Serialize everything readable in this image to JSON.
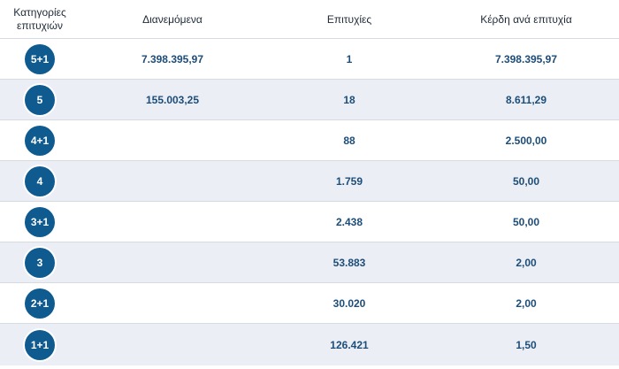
{
  "header": {
    "category": "Κατηγορίες επιτυχιών",
    "distributed": "Διανεμόμενα",
    "winners": "Επιτυχίες",
    "prize": "Κέρδη ανά επιτυχία"
  },
  "rows": [
    {
      "category": "5+1",
      "distributed": "7.398.395,97",
      "winners": "1",
      "prize": "7.398.395,97"
    },
    {
      "category": "5",
      "distributed": "155.003,25",
      "winners": "18",
      "prize": "8.611,29"
    },
    {
      "category": "4+1",
      "distributed": "",
      "winners": "88",
      "prize": "2.500,00"
    },
    {
      "category": "4",
      "distributed": "",
      "winners": "1.759",
      "prize": "50,00"
    },
    {
      "category": "3+1",
      "distributed": "",
      "winners": "2.438",
      "prize": "50,00"
    },
    {
      "category": "3",
      "distributed": "",
      "winners": "53.883",
      "prize": "2,00"
    },
    {
      "category": "2+1",
      "distributed": "",
      "winners": "30.020",
      "prize": "2,00"
    },
    {
      "category": "1+1",
      "distributed": "",
      "winners": "126.421",
      "prize": "1,50"
    }
  ]
}
